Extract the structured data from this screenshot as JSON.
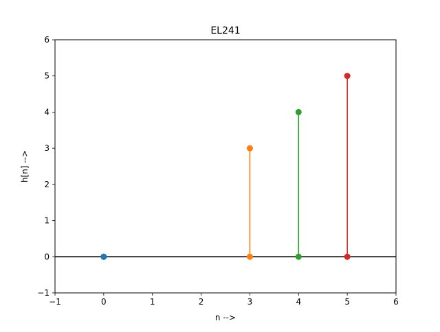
{
  "chart_data": {
    "type": "stem",
    "title": "EL241",
    "xlabel": "n -->",
    "ylabel": "h[n] -->",
    "xlim": [
      -1,
      6
    ],
    "ylim": [
      -1,
      6
    ],
    "xticks": [
      -1,
      0,
      1,
      2,
      3,
      4,
      5,
      6
    ],
    "yticks": [
      -1,
      0,
      1,
      2,
      3,
      4,
      5,
      6
    ],
    "grid": false,
    "baseline": 0,
    "series": [
      {
        "x": 0,
        "y": 0,
        "color": "#1f77b4"
      },
      {
        "x": 3,
        "y": 3,
        "color": "#ff7f0e"
      },
      {
        "x": 4,
        "y": 4,
        "color": "#2ca02c"
      },
      {
        "x": 5,
        "y": 5,
        "color": "#d62728"
      }
    ]
  }
}
